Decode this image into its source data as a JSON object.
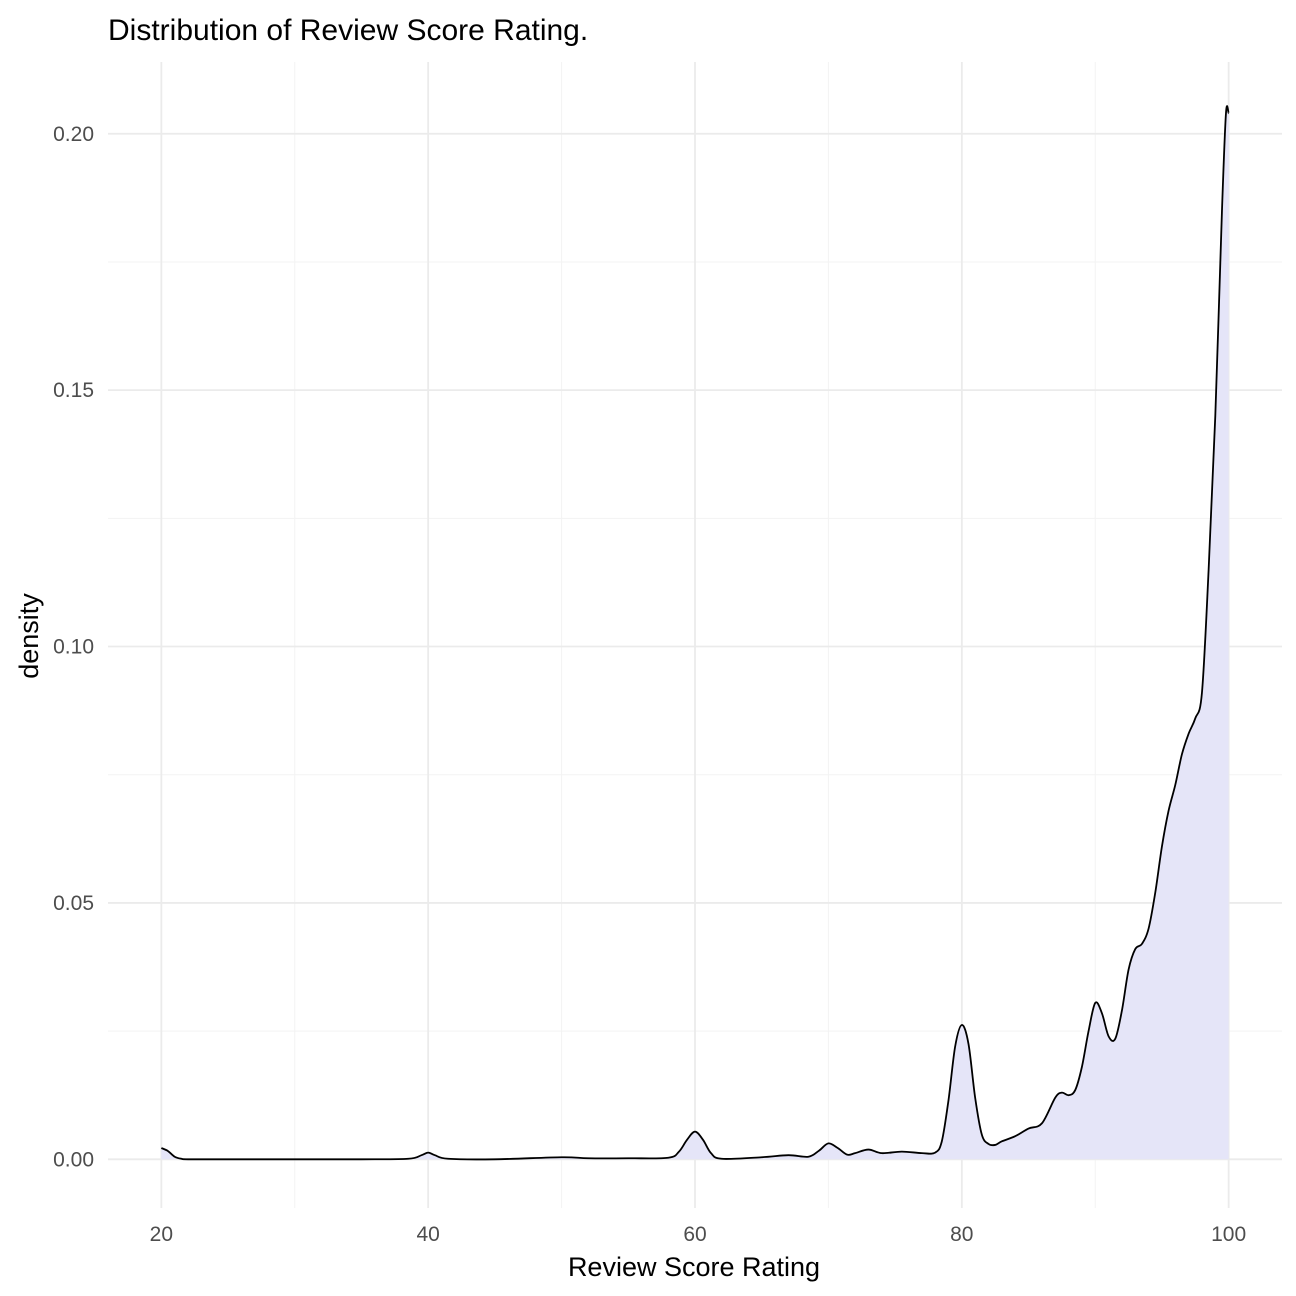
{
  "chart_data": {
    "type": "area",
    "title": "Distribution of Review Score Rating.",
    "xlabel": "Review Score Rating",
    "ylabel": "density",
    "xlim": [
      16,
      104
    ],
    "ylim": [
      -0.0095,
      0.214
    ],
    "x_ticks": [
      20,
      40,
      60,
      80,
      100
    ],
    "x_tick_labels": [
      "20",
      "40",
      "60",
      "80",
      "100"
    ],
    "y_ticks": [
      0,
      0.05,
      0.1,
      0.15,
      0.2
    ],
    "y_tick_labels": [
      "0.00",
      "0.05",
      "0.10",
      "0.15",
      "0.20"
    ],
    "x_minor_ticks": [
      30,
      50,
      70,
      90
    ],
    "y_minor_ticks": [
      0.025,
      0.075,
      0.125,
      0.175
    ],
    "grid": true,
    "legend": "none",
    "fill_color": "#e5e5f8",
    "line_color": "#000000",
    "series": [
      {
        "x": [
          20,
          20.5,
          21,
          21.5,
          22,
          25,
          30,
          35,
          38.5,
          39.5,
          40,
          40.5,
          41.5,
          45,
          50,
          52,
          55,
          58,
          58.8,
          59.4,
          60,
          60.6,
          61.2,
          62,
          65,
          67,
          68.5,
          69.3,
          70,
          70.7,
          71.4,
          72,
          73,
          74,
          75.5,
          77,
          78,
          78.5,
          79,
          79.5,
          80,
          80.5,
          81,
          81.5,
          82,
          82.5,
          83,
          84,
          85,
          86,
          87,
          87.5,
          88,
          88.5,
          89,
          89.5,
          90,
          90.5,
          91,
          91.5,
          92,
          92.5,
          93,
          93.5,
          94,
          94.5,
          95,
          95.5,
          96,
          96.5,
          97,
          97.5,
          98,
          98.5,
          99,
          99.5,
          99.8,
          100
        ],
        "y": [
          0.0022,
          0.0016,
          0.0005,
          0.0001,
          0.0,
          0.0,
          0.0,
          0.0,
          0.0001,
          0.0008,
          0.0013,
          0.0008,
          0.0001,
          0.0,
          0.0004,
          0.0002,
          0.0002,
          0.0003,
          0.0015,
          0.0038,
          0.0054,
          0.0038,
          0.0012,
          0.0001,
          0.0004,
          0.0008,
          0.0005,
          0.0017,
          0.0031,
          0.0022,
          0.0009,
          0.0012,
          0.0019,
          0.0012,
          0.0015,
          0.0012,
          0.0013,
          0.0035,
          0.0115,
          0.022,
          0.0262,
          0.0225,
          0.012,
          0.0048,
          0.003,
          0.0028,
          0.0035,
          0.0045,
          0.006,
          0.007,
          0.012,
          0.013,
          0.0125,
          0.0135,
          0.018,
          0.025,
          0.0305,
          0.0285,
          0.024,
          0.0235,
          0.029,
          0.037,
          0.041,
          0.042,
          0.045,
          0.052,
          0.061,
          0.068,
          0.073,
          0.079,
          0.083,
          0.086,
          0.091,
          0.115,
          0.145,
          0.185,
          0.204,
          0.204
        ]
      }
    ]
  }
}
